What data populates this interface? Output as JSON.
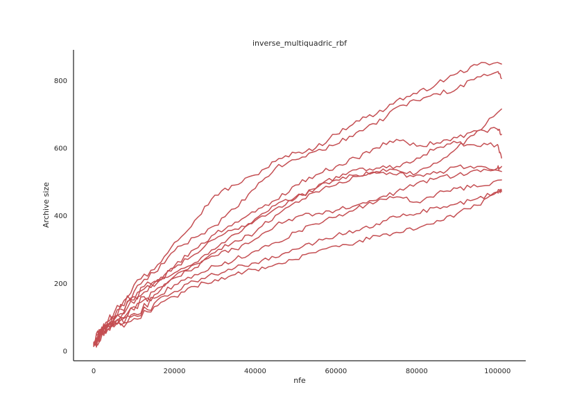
{
  "chart_data": {
    "type": "line",
    "title": "inverse_multiquadric_rbf",
    "xlabel": "nfe",
    "ylabel": "Archive size",
    "xlim": [
      -5000,
      107000
    ],
    "ylim": [
      -30,
      890
    ],
    "xticks": [
      0,
      20000,
      40000,
      60000,
      80000,
      100000
    ],
    "xtick_labels": [
      "0",
      "20000",
      "40000",
      "60000",
      "80000",
      "100000"
    ],
    "yticks": [
      0,
      200,
      400,
      600,
      800
    ],
    "ytick_labels": [
      "0",
      "200",
      "400",
      "600",
      "800"
    ],
    "grid": false,
    "line_color": "#c44e52",
    "series": [
      {
        "x": [
          0,
          2000,
          5000,
          10000,
          15000,
          20000,
          25000,
          30000,
          35000,
          40000,
          45000,
          50000,
          55000,
          60000,
          65000,
          70000,
          75000,
          80000,
          85000,
          90000,
          95000,
          101000
        ],
        "values": [
          15,
          65,
          110,
          195,
          240,
          320,
          385,
          460,
          490,
          520,
          560,
          585,
          600,
          640,
          680,
          700,
          740,
          760,
          790,
          820,
          845,
          848
        ]
      },
      {
        "x": [
          0,
          2000,
          5000,
          10000,
          15000,
          20000,
          25000,
          30000,
          35000,
          40000,
          45000,
          50000,
          55000,
          60000,
          65000,
          70000,
          75000,
          80000,
          85000,
          90000,
          95000,
          100000,
          101000
        ],
        "values": [
          20,
          70,
          100,
          175,
          230,
          295,
          335,
          370,
          420,
          480,
          540,
          565,
          590,
          610,
          645,
          670,
          720,
          740,
          760,
          775,
          810,
          825,
          805
        ]
      },
      {
        "x": [
          0,
          2000,
          5000,
          10000,
          15000,
          20000,
          25000,
          30000,
          35000,
          40000,
          45000,
          50000,
          55000,
          60000,
          65000,
          70000,
          75000,
          80000,
          85000,
          90000,
          95000,
          100000,
          101000
        ],
        "values": [
          25,
          60,
          90,
          140,
          190,
          250,
          300,
          345,
          380,
          410,
          445,
          490,
          520,
          545,
          570,
          600,
          625,
          605,
          615,
          630,
          650,
          655,
          640
        ]
      },
      {
        "x": [
          0,
          2000,
          5000,
          10000,
          15000,
          20000,
          25000,
          30000,
          35000,
          40000,
          45000,
          50000,
          55000,
          60000,
          65000,
          70000,
          75000,
          80000,
          85000,
          90000,
          95000,
          101000
        ],
        "values": [
          18,
          55,
          85,
          120,
          165,
          220,
          255,
          290,
          325,
          350,
          400,
          440,
          470,
          490,
          515,
          530,
          535,
          525,
          555,
          600,
          650,
          715
        ]
      },
      {
        "x": [
          0,
          2000,
          5000,
          10000,
          15000,
          20000,
          25000,
          30000,
          35000,
          40000,
          45000,
          50000,
          55000,
          60000,
          65000,
          70000,
          75000,
          80000,
          85000,
          90000,
          95000,
          100000,
          101000
        ],
        "values": [
          22,
          60,
          95,
          150,
          200,
          245,
          285,
          330,
          360,
          385,
          420,
          450,
          480,
          515,
          535,
          540,
          545,
          570,
          600,
          615,
          605,
          610,
          570
        ]
      },
      {
        "x": [
          0,
          2000,
          5000,
          10000,
          15000,
          20000,
          25000,
          30000,
          35000,
          40000,
          45000,
          50000,
          55000,
          60000,
          65000,
          70000,
          75000,
          80000,
          85000,
          90000,
          95000,
          101000
        ],
        "values": [
          15,
          55,
          95,
          160,
          205,
          230,
          260,
          300,
          345,
          390,
          430,
          455,
          480,
          505,
          520,
          525,
          520,
          520,
          525,
          545,
          545,
          530
        ]
      },
      {
        "x": [
          0,
          2000,
          5000,
          10000,
          15000,
          20000,
          25000,
          30000,
          35000,
          40000,
          45000,
          50000,
          55000,
          60000,
          65000,
          70000,
          75000,
          80000,
          85000,
          90000,
          95000,
          100000,
          101000
        ],
        "values": [
          20,
          50,
          85,
          130,
          175,
          215,
          245,
          280,
          300,
          330,
          370,
          395,
          405,
          415,
          430,
          445,
          470,
          495,
          510,
          520,
          535,
          540,
          545
        ]
      },
      {
        "x": [
          0,
          2000,
          5000,
          10000,
          15000,
          20000,
          25000,
          30000,
          35000,
          40000,
          45000,
          50000,
          55000,
          60000,
          65000,
          70000,
          75000,
          80000,
          85000,
          90000,
          95000,
          101000
        ],
        "values": [
          12,
          45,
          75,
          110,
          155,
          195,
          225,
          250,
          270,
          295,
          320,
          350,
          375,
          395,
          420,
          440,
          455,
          440,
          465,
          480,
          485,
          505
        ]
      },
      {
        "x": [
          0,
          2000,
          5000,
          10000,
          15000,
          20000,
          25000,
          30000,
          35000,
          40000,
          45000,
          50000,
          55000,
          60000,
          65000,
          70000,
          75000,
          80000,
          85000,
          90000,
          95000,
          100000,
          101000
        ],
        "values": [
          18,
          50,
          80,
          105,
          140,
          175,
          205,
          225,
          245,
          260,
          275,
          300,
          320,
          340,
          355,
          375,
          395,
          405,
          425,
          435,
          450,
          470,
          470
        ]
      },
      {
        "x": [
          0,
          2000,
          5000,
          10000,
          15000,
          20000,
          25000,
          30000,
          35000,
          40000,
          45000,
          50000,
          55000,
          60000,
          65000,
          70000,
          75000,
          80000,
          85000,
          90000,
          95000,
          100000,
          101000
        ],
        "values": [
          14,
          48,
          70,
          95,
          130,
          160,
          190,
          210,
          225,
          240,
          255,
          270,
          290,
          310,
          320,
          340,
          350,
          360,
          385,
          405,
          430,
          470,
          475
        ]
      }
    ]
  }
}
